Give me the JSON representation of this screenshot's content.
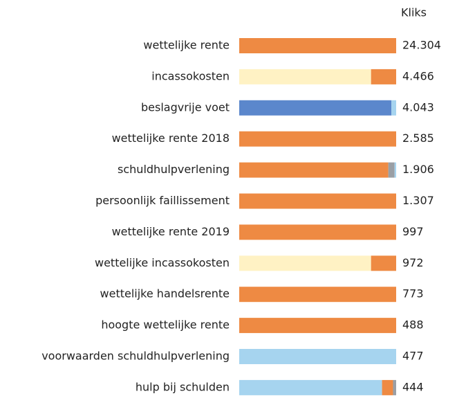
{
  "header": {
    "clicks": "Kliks"
  },
  "rows": [
    {
      "label": "wettelijke rente",
      "clicks": {
        "value": 24304,
        "label": "24.304"
      },
      "segments": [
        {
          "color": "#ee8a43",
          "value": 100
        }
      ]
    },
    {
      "label": "incassokosten",
      "clicks": {
        "value": 4466,
        "label": "4.466"
      },
      "segments": [
        {
          "color": "#fff2c4",
          "value": 84
        },
        {
          "color": "#ee8a43",
          "value": 16
        }
      ]
    },
    {
      "label": "beslagvrije voet",
      "clicks": {
        "value": 4043,
        "label": "4.043"
      },
      "segments": [
        {
          "color": "#5b87cc",
          "value": 97
        },
        {
          "color": "#a6d4ef",
          "value": 3
        }
      ]
    },
    {
      "label": "wettelijke rente 2018",
      "clicks": {
        "value": 2585,
        "label": "2.585"
      },
      "segments": [
        {
          "color": "#ee8a43",
          "value": 100
        }
      ]
    },
    {
      "label": "schuldhulpverlening",
      "clicks": {
        "value": 1906,
        "label": "1.906"
      },
      "segments": [
        {
          "color": "#ee8a43",
          "value": 95
        },
        {
          "color": "#9a9fa5",
          "value": 4
        },
        {
          "color": "#a6d4ef",
          "value": 1
        }
      ]
    },
    {
      "label": "persoonlijk faillissement",
      "clicks": {
        "value": 1307,
        "label": "1.307"
      },
      "segments": [
        {
          "color": "#ee8a43",
          "value": 100
        }
      ]
    },
    {
      "label": "wettelijke rente 2019",
      "clicks": 997,
      "segments": [
        {
          "color": "#ee8a43",
          "value": 100
        }
      ]
    },
    {
      "label": "wettelijke incassokosten",
      "clicks": 972,
      "segments": [
        {
          "color": "#fff2c4",
          "value": 84
        },
        {
          "color": "#ee8a43",
          "value": 16
        }
      ]
    },
    {
      "label": "wettelijke handelsrente",
      "clicks": 773,
      "segments": [
        {
          "color": "#ee8a43",
          "value": 100
        }
      ]
    },
    {
      "label": "hoogte wettelijke rente",
      "clicks": 488,
      "segments": [
        {
          "color": "#ee8a43",
          "value": 100
        }
      ]
    },
    {
      "label": "voorwaarden schuldhulpverlening",
      "clicks": 477,
      "segments": [
        {
          "color": "#a6d4ef",
          "value": 100
        }
      ]
    },
    {
      "label": "hulp bij schulden",
      "clicks": 444,
      "segments": [
        {
          "color": "#a6d4ef",
          "value": 91
        },
        {
          "color": "#ee8a43",
          "value": 7
        },
        {
          "color": "#9a9fa5",
          "value": 2
        }
      ]
    }
  ]
}
